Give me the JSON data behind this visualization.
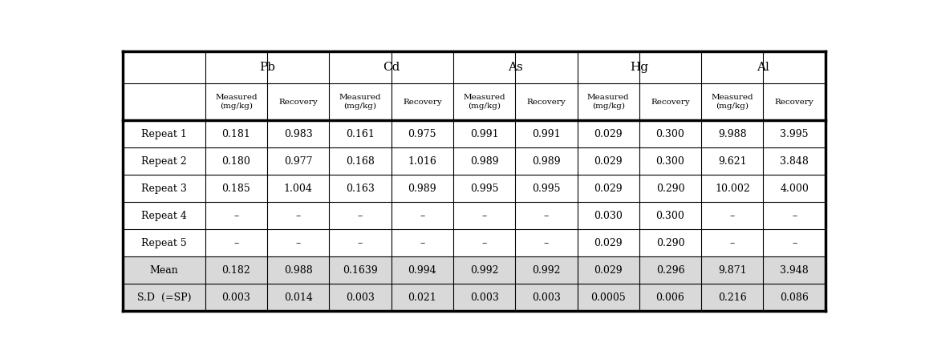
{
  "col_groups": [
    "Pb",
    "Cd",
    "As",
    "Hg",
    "Al"
  ],
  "col_group_spans": [
    2,
    2,
    2,
    2,
    2
  ],
  "sub_headers": [
    "Measured\n(mg/kg)",
    "Recovery",
    "Measured\n(mg/kg)",
    "Recovery",
    "Measured\n(mg/kg)",
    "Recovery",
    "Measured\n(mg/kg)",
    "Recovery",
    "Measured\n(mg/kg)",
    "Recovery"
  ],
  "row_labels": [
    "Repeat 1",
    "Repeat 2",
    "Repeat 3",
    "Repeat 4",
    "Repeat 5",
    "Mean",
    "S.D  (=SP)"
  ],
  "data": [
    [
      "0.181",
      "0.983",
      "0.161",
      "0.975",
      "0.991",
      "0.991",
      "0.029",
      "0.300",
      "9.988",
      "3.995"
    ],
    [
      "0.180",
      "0.977",
      "0.168",
      "1.016",
      "0.989",
      "0.989",
      "0.029",
      "0.300",
      "9.621",
      "3.848"
    ],
    [
      "0.185",
      "1.004",
      "0.163",
      "0.989",
      "0.995",
      "0.995",
      "0.029",
      "0.290",
      "10.002",
      "4.000"
    ],
    [
      "–",
      "–",
      "–",
      "–",
      "–",
      "–",
      "0.030",
      "0.300",
      "–",
      "–"
    ],
    [
      "–",
      "–",
      "–",
      "–",
      "–",
      "–",
      "0.029",
      "0.290",
      "–",
      "–"
    ],
    [
      "0.182",
      "0.988",
      "0.1639",
      "0.994",
      "0.992",
      "0.992",
      "0.029",
      "0.296",
      "9.871",
      "3.948"
    ],
    [
      "0.003",
      "0.014",
      "0.003",
      "0.021",
      "0.003",
      "0.003",
      "0.0005",
      "0.006",
      "0.216",
      "0.086"
    ]
  ],
  "shade_color": "#d9d9d9",
  "background_color": "#ffffff",
  "border_color": "#000000",
  "text_color": "#000000"
}
